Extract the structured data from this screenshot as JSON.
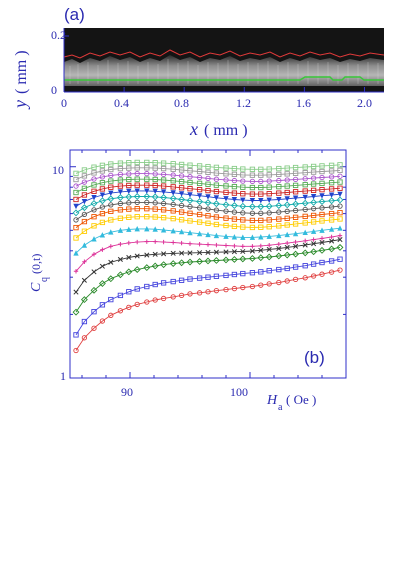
{
  "panel_a": {
    "label": "(a)",
    "xlabel_var": "x",
    "xlabel_unit": "( mm )",
    "ylabel_var": "y",
    "ylabel_unit": "( mm )",
    "xticks": [
      "0",
      "0.4",
      "0.8",
      "1.2",
      "1.6",
      "2.0"
    ],
    "yticks": [
      "0",
      "0.2"
    ],
    "image_colors": {
      "background": "#141414",
      "front_upper": "#e23a3a",
      "front_lower": "#38c838"
    }
  },
  "chart_data": {
    "type": "line",
    "panel_label": "(b)",
    "xlabel_var": "H",
    "xlabel_sub": "a",
    "xlabel_unit": "( Oe )",
    "ylabel_var": "C",
    "ylabel_sub": "q",
    "ylabel_arg": "(0,t)",
    "xticks": [
      "90",
      "100"
    ],
    "yticks": [
      "1",
      "10"
    ],
    "xlim": [
      85,
      108
    ],
    "ylim": [
      1,
      12
    ],
    "yscale": "log",
    "grid": false,
    "x": [
      85.5,
      86.2,
      87.0,
      87.7,
      88.4,
      89.2,
      89.9,
      90.6,
      91.4,
      92.1,
      92.8,
      93.6,
      94.3,
      95.0,
      95.8,
      96.5,
      97.2,
      98.0,
      98.7,
      99.4,
      100.2,
      100.9,
      101.6,
      102.4,
      103.1,
      103.8,
      104.6,
      105.3,
      106.0,
      106.8,
      107.5
    ],
    "series": [
      {
        "marker": "o",
        "color": "#e04040",
        "values": [
          1.35,
          1.55,
          1.72,
          1.86,
          1.98,
          2.08,
          2.16,
          2.23,
          2.29,
          2.34,
          2.38,
          2.42,
          2.46,
          2.5,
          2.53,
          2.56,
          2.59,
          2.62,
          2.65,
          2.68,
          2.71,
          2.75,
          2.79,
          2.83,
          2.88,
          2.93,
          2.98,
          3.04,
          3.1,
          3.17,
          3.24
        ]
      },
      {
        "marker": "s",
        "color": "#4444dd",
        "values": [
          1.6,
          1.85,
          2.06,
          2.22,
          2.35,
          2.46,
          2.56,
          2.64,
          2.71,
          2.77,
          2.82,
          2.86,
          2.9,
          2.94,
          2.97,
          3.0,
          3.03,
          3.06,
          3.09,
          3.12,
          3.15,
          3.18,
          3.22,
          3.26,
          3.3,
          3.35,
          3.4,
          3.46,
          3.52,
          3.58,
          3.65
        ]
      },
      {
        "marker": "d",
        "color": "#2a8a2a",
        "values": [
          2.05,
          2.35,
          2.6,
          2.8,
          2.95,
          3.08,
          3.18,
          3.26,
          3.33,
          3.39,
          3.44,
          3.48,
          3.51,
          3.54,
          3.56,
          3.58,
          3.6,
          3.62,
          3.64,
          3.66,
          3.68,
          3.71,
          3.74,
          3.78,
          3.82,
          3.86,
          3.91,
          3.96,
          4.02,
          4.08,
          4.15
        ]
      },
      {
        "marker": "x",
        "color": "#333333",
        "values": [
          2.55,
          2.9,
          3.18,
          3.38,
          3.53,
          3.64,
          3.72,
          3.78,
          3.82,
          3.85,
          3.87,
          3.89,
          3.9,
          3.91,
          3.92,
          3.93,
          3.94,
          3.95,
          3.96,
          3.97,
          3.99,
          4.02,
          4.06,
          4.1,
          4.15,
          4.2,
          4.26,
          4.32,
          4.38,
          4.45,
          4.52
        ]
      },
      {
        "marker": "+",
        "color": "#dd3399",
        "values": [
          3.2,
          3.55,
          3.85,
          4.05,
          4.2,
          4.3,
          4.36,
          4.4,
          4.42,
          4.42,
          4.4,
          4.38,
          4.35,
          4.32,
          4.3,
          4.28,
          4.26,
          4.24,
          4.22,
          4.2,
          4.2,
          4.22,
          4.25,
          4.3,
          4.35,
          4.4,
          4.46,
          4.52,
          4.58,
          4.65,
          4.72
        ]
      },
      {
        "marker": "^",
        "color": "#33bbdd",
        "values": [
          3.9,
          4.25,
          4.55,
          4.75,
          4.9,
          5.0,
          5.05,
          5.08,
          5.08,
          5.06,
          5.02,
          4.97,
          4.92,
          4.87,
          4.82,
          4.77,
          4.72,
          4.68,
          4.65,
          4.63,
          4.63,
          4.65,
          4.68,
          4.72,
          4.77,
          4.82,
          4.88,
          4.94,
          5.0,
          5.06,
          5.12
        ]
      },
      {
        "marker": "s",
        "color": "#ffcc00",
        "values": [
          4.6,
          4.95,
          5.25,
          5.45,
          5.6,
          5.7,
          5.76,
          5.8,
          5.8,
          5.78,
          5.74,
          5.68,
          5.61,
          5.54,
          5.47,
          5.4,
          5.33,
          5.27,
          5.22,
          5.18,
          5.16,
          5.17,
          5.2,
          5.25,
          5.3,
          5.36,
          5.42,
          5.48,
          5.54,
          5.6,
          5.66
        ]
      },
      {
        "marker": "s",
        "color": "#ee5500",
        "values": [
          5.15,
          5.5,
          5.8,
          6.0,
          6.15,
          6.25,
          6.3,
          6.33,
          6.33,
          6.3,
          6.25,
          6.18,
          6.1,
          6.02,
          5.94,
          5.86,
          5.78,
          5.71,
          5.65,
          5.6,
          5.57,
          5.57,
          5.6,
          5.65,
          5.7,
          5.76,
          5.82,
          5.88,
          5.94,
          6.0,
          6.06
        ]
      },
      {
        "marker": "o",
        "color": "#555555",
        "values": [
          5.6,
          5.95,
          6.25,
          6.45,
          6.6,
          6.7,
          6.75,
          6.78,
          6.78,
          6.75,
          6.7,
          6.63,
          6.55,
          6.47,
          6.39,
          6.31,
          6.23,
          6.16,
          6.1,
          6.05,
          6.02,
          6.02,
          6.05,
          6.1,
          6.15,
          6.21,
          6.27,
          6.33,
          6.39,
          6.45,
          6.51
        ]
      },
      {
        "marker": "d",
        "color": "#11aaaa",
        "values": [
          6.05,
          6.4,
          6.7,
          6.9,
          7.05,
          7.15,
          7.2,
          7.23,
          7.23,
          7.2,
          7.15,
          7.08,
          7.0,
          6.92,
          6.84,
          6.76,
          6.68,
          6.61,
          6.55,
          6.5,
          6.47,
          6.47,
          6.5,
          6.55,
          6.6,
          6.66,
          6.72,
          6.78,
          6.84,
          6.9,
          6.96
        ]
      },
      {
        "marker": "v",
        "color": "#2244cc",
        "values": [
          6.5,
          6.85,
          7.15,
          7.35,
          7.5,
          7.6,
          7.65,
          7.68,
          7.68,
          7.65,
          7.6,
          7.53,
          7.45,
          7.37,
          7.29,
          7.21,
          7.13,
          7.06,
          7.0,
          6.95,
          6.92,
          6.92,
          6.95,
          7.0,
          7.05,
          7.11,
          7.17,
          7.23,
          7.29,
          7.35,
          7.41
        ]
      },
      {
        "marker": "s",
        "color": "#cc2222",
        "values": [
          7.0,
          7.35,
          7.65,
          7.85,
          8.0,
          8.1,
          8.15,
          8.18,
          8.18,
          8.15,
          8.1,
          8.03,
          7.95,
          7.87,
          7.79,
          7.71,
          7.63,
          7.56,
          7.5,
          7.45,
          7.42,
          7.42,
          7.45,
          7.5,
          7.55,
          7.61,
          7.67,
          7.73,
          7.79,
          7.85,
          7.91
        ]
      },
      {
        "marker": "s",
        "color": "#55aa55",
        "values": [
          7.55,
          7.9,
          8.2,
          8.4,
          8.55,
          8.65,
          8.7,
          8.73,
          8.73,
          8.7,
          8.65,
          8.58,
          8.5,
          8.42,
          8.34,
          8.26,
          8.18,
          8.11,
          8.05,
          8.0,
          7.97,
          7.97,
          8.0,
          8.05,
          8.1,
          8.16,
          8.22,
          8.28,
          8.34,
          8.4,
          8.46
        ]
      },
      {
        "marker": "o",
        "color": "#aa55cc",
        "values": [
          8.1,
          8.45,
          8.75,
          8.95,
          9.1,
          9.2,
          9.25,
          9.28,
          9.28,
          9.25,
          9.2,
          9.13,
          9.05,
          8.97,
          8.89,
          8.81,
          8.73,
          8.66,
          8.6,
          8.55,
          8.52,
          8.52,
          8.55,
          8.6,
          8.65,
          8.71,
          8.77,
          8.83,
          8.89,
          8.95,
          9.01
        ]
      },
      {
        "marker": "s",
        "color": "#999999",
        "values": [
          8.7,
          9.05,
          9.35,
          9.55,
          9.7,
          9.8,
          9.85,
          9.88,
          9.88,
          9.85,
          9.8,
          9.73,
          9.65,
          9.57,
          9.49,
          9.41,
          9.33,
          9.26,
          9.2,
          9.15,
          9.12,
          9.12,
          9.15,
          9.2,
          9.25,
          9.31,
          9.37,
          9.43,
          9.49,
          9.55,
          9.61
        ]
      },
      {
        "marker": "s",
        "color": "#88cc88",
        "values": [
          9.3,
          9.65,
          9.95,
          10.15,
          10.3,
          10.4,
          10.45,
          10.48,
          10.48,
          10.45,
          10.4,
          10.33,
          10.25,
          10.17,
          10.09,
          10.01,
          9.93,
          9.86,
          9.8,
          9.75,
          9.72,
          9.72,
          9.75,
          9.8,
          9.85,
          9.91,
          9.97,
          10.03,
          10.09,
          10.15,
          10.21
        ]
      }
    ]
  }
}
